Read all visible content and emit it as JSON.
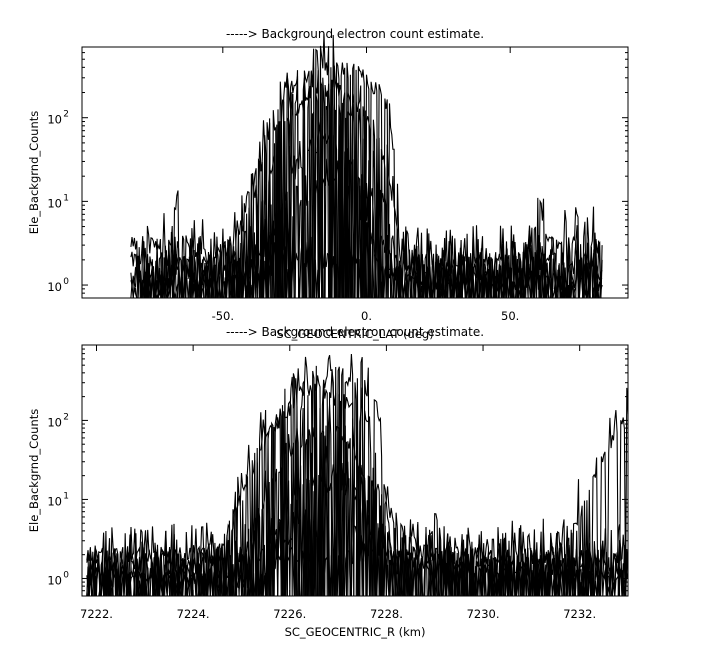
{
  "chart_data": [
    {
      "type": "line",
      "title": "-----> Background electron count estimate.",
      "xlabel": "SC_GEOCENTRIC_LAT (deg)",
      "ylabel": "Ele_Backgrnd_Counts",
      "xlim": [
        -99,
        91
      ],
      "ylim": [
        0.7,
        700
      ],
      "yscale": "log",
      "grid": false,
      "x_ticks": [
        -50,
        0,
        50
      ],
      "x_tick_labels": [
        "-50.",
        "0.",
        "50."
      ],
      "y_ticks": [
        1,
        10,
        100
      ],
      "y_tick_labels": [
        "10",
        "10",
        "10"
      ],
      "y_tick_exponents": [
        "0",
        "1",
        "2"
      ],
      "series": [
        {
          "x": [
            -82,
            -70,
            -55,
            -45,
            -38,
            -32,
            -28,
            -24,
            -20,
            -16,
            -12,
            -8,
            -4,
            0,
            4,
            8,
            12,
            20,
            40,
            60,
            82
          ],
          "y": [
            2,
            2,
            2,
            4,
            25,
            90,
            200,
            270,
            330,
            370,
            390,
            380,
            350,
            300,
            220,
            120,
            2,
            2,
            2,
            2,
            2
          ]
        },
        {
          "x": [
            -82,
            -60,
            -45,
            -38,
            -32,
            -28,
            -24,
            -20,
            -16,
            -12,
            -8,
            -4,
            0,
            4,
            8,
            12,
            20,
            50,
            82
          ],
          "y": [
            1.5,
            1.5,
            3,
            18,
            60,
            130,
            180,
            220,
            240,
            230,
            200,
            160,
            110,
            60,
            20,
            2,
            1.5,
            1.5,
            1.5
          ]
        },
        {
          "x": [
            -82,
            -60,
            -42,
            -36,
            -32,
            -28,
            -24,
            -20,
            -16,
            -12,
            -8,
            -4,
            0,
            4,
            8,
            12,
            30,
            82
          ],
          "y": [
            1.2,
            1.2,
            2,
            9,
            35,
            80,
            120,
            150,
            160,
            150,
            120,
            80,
            45,
            18,
            6,
            1.2,
            1.2,
            1.2
          ]
        },
        {
          "x": [
            -82,
            -50,
            -38,
            -34,
            -30,
            -26,
            -22,
            -18,
            -14,
            -10,
            -6,
            -2,
            2,
            6,
            10,
            82
          ],
          "y": [
            1,
            1,
            1.5,
            3,
            9,
            20,
            35,
            50,
            55,
            48,
            35,
            20,
            9,
            3,
            1.5,
            1
          ]
        },
        {
          "x": [
            -82,
            -50,
            -36,
            -32,
            -28,
            -24,
            -20,
            -16,
            -12,
            -8,
            -4,
            0,
            4,
            8,
            82
          ],
          "y": [
            1,
            1,
            1.2,
            2,
            4,
            8,
            13,
            17,
            18,
            15,
            10,
            5,
            2,
            1.2,
            1
          ]
        },
        {
          "x": [
            -82,
            -68,
            -66,
            -64,
            -62,
            -50,
            55,
            58,
            60,
            62,
            64,
            72,
            74,
            76,
            82
          ],
          "y": [
            3,
            3,
            14,
            4,
            3,
            2,
            2,
            3,
            15,
            4,
            3,
            3,
            9,
            3,
            3
          ]
        }
      ]
    },
    {
      "type": "line",
      "title": "-----> Background electron count estimate.",
      "xlabel": "SC_GEOCENTRIC_R (km)",
      "ylabel": "Ele_Backgrnd_Counts",
      "xlim": [
        7221.7,
        7233.0
      ],
      "ylim": [
        0.6,
        900
      ],
      "yscale": "log",
      "grid": false,
      "x_ticks": [
        7222,
        7224,
        7226,
        7228,
        7230,
        7232
      ],
      "x_tick_labels": [
        "7222.",
        "7224.",
        "7226.",
        "7228.",
        "7230.",
        "7232."
      ],
      "y_ticks": [
        1,
        10,
        100
      ],
      "y_tick_labels": [
        "10",
        "10",
        "10"
      ],
      "y_tick_exponents": [
        "0",
        "1",
        "2"
      ],
      "series": [
        {
          "x": [
            7221.8,
            7224.0,
            7224.6,
            7225.0,
            7225.4,
            7225.8,
            7226.2,
            7226.6,
            7227.0,
            7227.4,
            7227.8,
            7228.1,
            7229,
            7231,
            7233.0
          ],
          "y": [
            2,
            2,
            2.5,
            12,
            50,
            120,
            220,
            320,
            390,
            330,
            180,
            2,
            2,
            2,
            2
          ]
        },
        {
          "x": [
            7221.8,
            7224.4,
            7224.8,
            7225.2,
            7225.6,
            7226.0,
            7226.4,
            7226.8,
            7227.2,
            7227.6,
            7228.0,
            7229,
            7233.0
          ],
          "y": [
            1.5,
            1.5,
            5,
            25,
            70,
            130,
            180,
            200,
            170,
            100,
            2,
            1.5,
            1.5
          ]
        },
        {
          "x": [
            7221.8,
            7224.8,
            7225.2,
            7225.6,
            7226.0,
            7226.4,
            7226.8,
            7227.2,
            7227.6,
            7229,
            7233.0
          ],
          "y": [
            1.2,
            1.2,
            4,
            15,
            40,
            70,
            80,
            60,
            20,
            1.2,
            1.2
          ]
        },
        {
          "x": [
            7221.8,
            7225.2,
            7225.6,
            7226.0,
            7226.4,
            7226.8,
            7227.2,
            7227.6,
            7228.0,
            7228.8,
            7229.0,
            7229.2,
            7233.0
          ],
          "y": [
            1,
            1,
            3,
            9,
            18,
            24,
            18,
            6,
            1.5,
            1.5,
            8,
            1.5,
            1
          ]
        },
        {
          "x": [
            7221.8,
            7225.4,
            7225.8,
            7226.2,
            7226.6,
            7227.0,
            7227.4,
            7227.8,
            7233.0
          ],
          "y": [
            1,
            1,
            2,
            6,
            12,
            16,
            10,
            2,
            1
          ]
        },
        {
          "x": [
            7221.8,
            7231.4,
            7231.8,
            7232.1,
            7232.4,
            7232.7,
            7233.0
          ],
          "y": [
            2,
            2,
            4,
            10,
            30,
            60,
            120
          ]
        }
      ]
    }
  ]
}
